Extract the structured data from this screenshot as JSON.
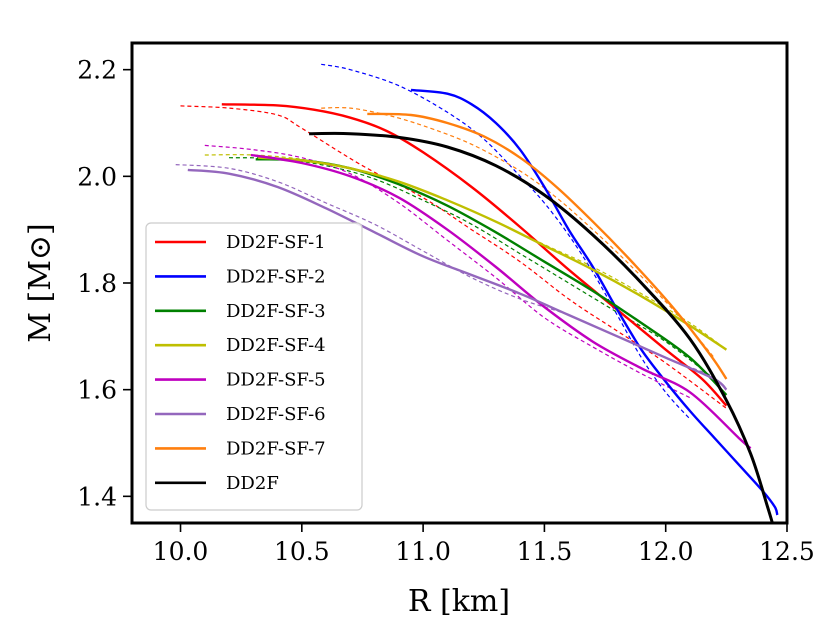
{
  "chart_data": {
    "type": "line",
    "title": "",
    "xlabel": "R [km]",
    "ylabel": "M [M⊙]",
    "xlim": [
      9.8,
      12.5
    ],
    "ylim": [
      1.35,
      2.25
    ],
    "xticks": [
      "10.0",
      "10.5",
      "11.0",
      "11.5",
      "12.0",
      "12.5"
    ],
    "yticks": [
      "1.4",
      "1.6",
      "1.8",
      "2.0",
      "2.2"
    ],
    "xtick_values": [
      10.0,
      10.5,
      11.0,
      11.5,
      12.0,
      12.5
    ],
    "ytick_values": [
      1.4,
      1.6,
      1.8,
      2.0,
      2.2
    ],
    "grid": false,
    "legend_position": "center-left",
    "series": [
      {
        "name": "DD2F-SF-1",
        "color": "#ff0000",
        "solid": [
          [
            10.17,
            2.135
          ],
          [
            10.4,
            2.133
          ],
          [
            10.55,
            2.125
          ],
          [
            10.7,
            2.11
          ],
          [
            10.85,
            2.085
          ],
          [
            11.0,
            2.045
          ],
          [
            11.2,
            1.98
          ],
          [
            11.4,
            1.905
          ],
          [
            11.6,
            1.825
          ],
          [
            11.8,
            1.75
          ],
          [
            12.0,
            1.675
          ],
          [
            12.15,
            1.62
          ],
          [
            12.25,
            1.57
          ]
        ],
        "dashed": [
          [
            10.0,
            2.132
          ],
          [
            10.2,
            2.128
          ],
          [
            10.4,
            2.115
          ],
          [
            10.5,
            2.09
          ],
          [
            10.75,
            2.02
          ],
          [
            11.0,
            1.96
          ],
          [
            11.2,
            1.9
          ],
          [
            11.4,
            1.84
          ],
          [
            11.6,
            1.77
          ],
          [
            11.8,
            1.71
          ],
          [
            12.0,
            1.65
          ],
          [
            12.25,
            1.565
          ]
        ]
      },
      {
        "name": "DD2F-SF-2",
        "color": "#0000ff",
        "solid": [
          [
            10.95,
            2.162
          ],
          [
            11.1,
            2.155
          ],
          [
            11.2,
            2.135
          ],
          [
            11.3,
            2.1
          ],
          [
            11.4,
            2.05
          ],
          [
            11.5,
            1.98
          ],
          [
            11.6,
            1.9
          ],
          [
            11.7,
            1.83
          ],
          [
            11.8,
            1.75
          ],
          [
            11.9,
            1.675
          ],
          [
            12.0,
            1.615
          ],
          [
            12.1,
            1.56
          ],
          [
            12.2,
            1.51
          ],
          [
            12.3,
            1.46
          ],
          [
            12.4,
            1.41
          ],
          [
            12.45,
            1.38
          ],
          [
            12.46,
            1.365
          ]
        ],
        "dashed": [
          [
            10.58,
            2.21
          ],
          [
            10.7,
            2.2
          ],
          [
            10.9,
            2.17
          ],
          [
            11.1,
            2.12
          ],
          [
            11.25,
            2.07
          ],
          [
            11.4,
            2.0
          ],
          [
            11.5,
            1.95
          ],
          [
            11.6,
            1.89
          ],
          [
            11.7,
            1.82
          ],
          [
            11.8,
            1.74
          ],
          [
            11.9,
            1.66
          ],
          [
            12.0,
            1.595
          ],
          [
            12.1,
            1.545
          ]
        ]
      },
      {
        "name": "DD2F-SF-3",
        "color": "#008000",
        "solid": [
          [
            10.31,
            2.032
          ],
          [
            10.5,
            2.03
          ],
          [
            10.7,
            2.015
          ],
          [
            10.9,
            1.985
          ],
          [
            11.1,
            1.945
          ],
          [
            11.3,
            1.895
          ],
          [
            11.5,
            1.84
          ],
          [
            11.7,
            1.785
          ],
          [
            11.9,
            1.725
          ],
          [
            12.1,
            1.66
          ],
          [
            12.25,
            1.59
          ]
        ],
        "dashed": [
          [
            10.2,
            2.035
          ],
          [
            10.4,
            2.033
          ],
          [
            10.6,
            2.02
          ],
          [
            10.8,
            1.995
          ],
          [
            11.0,
            1.955
          ],
          [
            11.2,
            1.91
          ],
          [
            11.4,
            1.855
          ],
          [
            11.6,
            1.8
          ],
          [
            11.8,
            1.745
          ],
          [
            12.0,
            1.69
          ],
          [
            12.2,
            1.62
          ]
        ]
      },
      {
        "name": "DD2F-SF-4",
        "color": "#bfbf00",
        "solid": [
          [
            10.32,
            2.035
          ],
          [
            10.5,
            2.03
          ],
          [
            10.7,
            2.015
          ],
          [
            10.9,
            1.99
          ],
          [
            11.1,
            1.955
          ],
          [
            11.3,
            1.915
          ],
          [
            11.5,
            1.87
          ],
          [
            11.7,
            1.825
          ],
          [
            11.9,
            1.775
          ],
          [
            12.1,
            1.72
          ],
          [
            12.25,
            1.675
          ]
        ],
        "dashed": [
          [
            10.1,
            2.04
          ],
          [
            10.3,
            2.04
          ],
          [
            10.5,
            2.032
          ],
          [
            10.7,
            2.015
          ],
          [
            10.9,
            1.99
          ],
          [
            11.1,
            1.955
          ],
          [
            11.3,
            1.915
          ],
          [
            11.5,
            1.872
          ],
          [
            11.7,
            1.83
          ],
          [
            11.9,
            1.78
          ],
          [
            12.1,
            1.725
          ],
          [
            12.25,
            1.675
          ]
        ]
      },
      {
        "name": "DD2F-SF-5",
        "color": "#bf00bf",
        "solid": [
          [
            10.29,
            2.04
          ],
          [
            10.5,
            2.025
          ],
          [
            10.7,
            2.0
          ],
          [
            10.9,
            1.96
          ],
          [
            11.1,
            1.9
          ],
          [
            11.3,
            1.83
          ],
          [
            11.5,
            1.755
          ],
          [
            11.7,
            1.69
          ],
          [
            11.9,
            1.64
          ],
          [
            12.1,
            1.595
          ],
          [
            12.3,
            1.51
          ],
          [
            12.35,
            1.49
          ]
        ],
        "dashed": [
          [
            10.1,
            2.058
          ],
          [
            10.3,
            2.05
          ],
          [
            10.5,
            2.035
          ],
          [
            10.7,
            2.005
          ],
          [
            10.9,
            1.95
          ],
          [
            11.1,
            1.88
          ],
          [
            11.3,
            1.81
          ],
          [
            11.5,
            1.735
          ],
          [
            11.7,
            1.68
          ],
          [
            11.9,
            1.63
          ],
          [
            12.1,
            1.585
          ]
        ]
      },
      {
        "name": "DD2F-SF-6",
        "color": "#9467bd",
        "solid": [
          [
            10.03,
            2.012
          ],
          [
            10.2,
            2.005
          ],
          [
            10.4,
            1.98
          ],
          [
            10.6,
            1.94
          ],
          [
            10.8,
            1.895
          ],
          [
            11.0,
            1.85
          ],
          [
            11.2,
            1.815
          ],
          [
            11.4,
            1.78
          ],
          [
            11.6,
            1.74
          ],
          [
            11.8,
            1.7
          ],
          [
            12.0,
            1.66
          ],
          [
            12.2,
            1.62
          ],
          [
            12.25,
            1.6
          ]
        ],
        "dashed": [
          [
            9.98,
            2.022
          ],
          [
            10.2,
            2.015
          ],
          [
            10.4,
            1.99
          ],
          [
            10.6,
            1.95
          ],
          [
            10.8,
            1.91
          ],
          [
            11.0,
            1.86
          ],
          [
            11.2,
            1.81
          ],
          [
            11.4,
            1.77
          ],
          [
            11.6,
            1.74
          ],
          [
            11.8,
            1.7
          ],
          [
            12.0,
            1.66
          ],
          [
            12.2,
            1.625
          ]
        ]
      },
      {
        "name": "DD2F-SF-7",
        "color": "#ff7f0e",
        "solid": [
          [
            10.77,
            2.117
          ],
          [
            10.95,
            2.115
          ],
          [
            11.1,
            2.1
          ],
          [
            11.25,
            2.075
          ],
          [
            11.4,
            2.035
          ],
          [
            11.55,
            1.98
          ],
          [
            11.7,
            1.915
          ],
          [
            11.85,
            1.845
          ],
          [
            12.0,
            1.77
          ],
          [
            12.1,
            1.715
          ],
          [
            12.2,
            1.655
          ],
          [
            12.25,
            1.62
          ]
        ],
        "dashed": [
          [
            10.58,
            2.128
          ],
          [
            10.7,
            2.128
          ],
          [
            10.85,
            2.115
          ],
          [
            11.0,
            2.095
          ],
          [
            11.2,
            2.06
          ],
          [
            11.4,
            2.01
          ],
          [
            11.55,
            1.96
          ],
          [
            11.7,
            1.9
          ],
          [
            11.85,
            1.835
          ],
          [
            12.0,
            1.765
          ],
          [
            12.1,
            1.715
          ],
          [
            12.2,
            1.66
          ]
        ]
      },
      {
        "name": "DD2F",
        "color": "#000000",
        "solid": [
          [
            10.53,
            2.08
          ],
          [
            10.7,
            2.08
          ],
          [
            10.9,
            2.073
          ],
          [
            11.1,
            2.055
          ],
          [
            11.3,
            2.02
          ],
          [
            11.5,
            1.965
          ],
          [
            11.7,
            1.89
          ],
          [
            11.9,
            1.8
          ],
          [
            12.1,
            1.695
          ],
          [
            12.25,
            1.58
          ],
          [
            12.35,
            1.48
          ],
          [
            12.42,
            1.38
          ],
          [
            12.44,
            1.35
          ]
        ]
      }
    ]
  }
}
